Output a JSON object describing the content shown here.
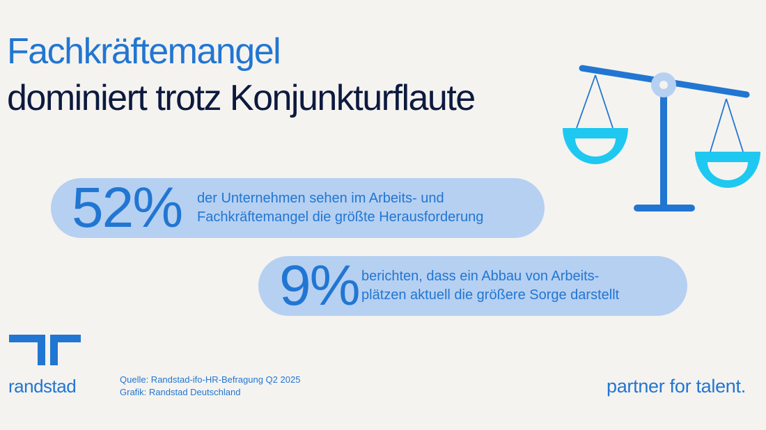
{
  "title": {
    "line1": "Fachkräftemangel",
    "line2": "dominiert trotz Konjunkturflaute"
  },
  "stats": [
    {
      "value": "52%",
      "text_line1": "der Unternehmen sehen im Arbeits- und",
      "text_line2": "Fachkräftemangel die größte Herausforderung"
    },
    {
      "value": "9%",
      "text_line1": "berichten, dass ein Abbau von Arbeits-",
      "text_line2": "plätzen aktuell die größere Sorge darstellt"
    }
  ],
  "logo": {
    "text": "randstad",
    "icon": "randstad-logo-icon"
  },
  "source": {
    "line1": "Quelle: Randstad-ifo-HR-Befragung Q2 2025",
    "line2": "Grafik: Randstad Deutschland"
  },
  "tagline": "partner for talent.",
  "illustration": "scale-of-justice-icon",
  "colors": {
    "background": "#f5f3ef",
    "brand_blue": "#2176d2",
    "dark_navy": "#0d1a3f",
    "pill": "#b6d0f2",
    "cyan": "#1ec8f0"
  }
}
